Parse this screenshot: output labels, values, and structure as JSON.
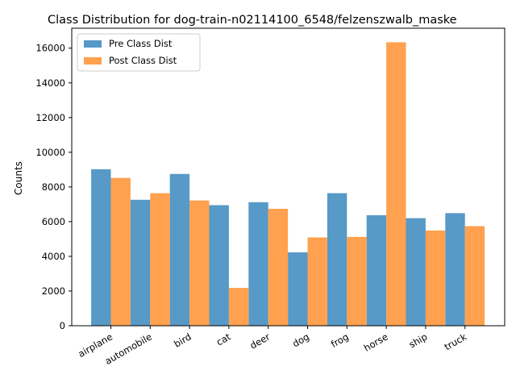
{
  "chart_data": {
    "type": "bar",
    "title": "Class Distribution for dog-train-n02114100_6548/felzenszwalb_maske",
    "xlabel": "",
    "ylabel": "Counts",
    "categories": [
      "airplane",
      "automobile",
      "bird",
      "cat",
      "deer",
      "dog",
      "frog",
      "horse",
      "ship",
      "truck"
    ],
    "series": [
      {
        "name": "Pre Class Dist",
        "color": "#5799c7",
        "values": [
          9020,
          7260,
          8750,
          6950,
          7120,
          4230,
          7640,
          6370,
          6200,
          6490
        ]
      },
      {
        "name": "Post Class Dist",
        "color": "#ffa14f",
        "values": [
          8520,
          7640,
          7220,
          2180,
          6740,
          5090,
          5120,
          16340,
          5490,
          5740
        ]
      }
    ],
    "ylim": [
      0,
      17150
    ],
    "yticks": [
      0,
      2000,
      4000,
      6000,
      8000,
      10000,
      12000,
      14000,
      16000
    ],
    "grid": false,
    "legend_position": "top-left"
  }
}
